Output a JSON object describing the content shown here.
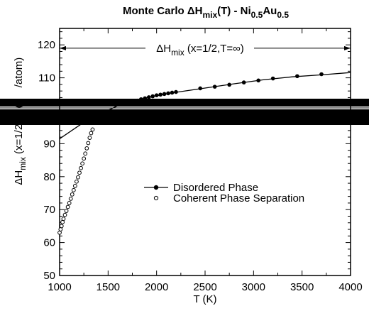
{
  "chart_data": {
    "type": "scatter",
    "title": {
      "main": "Monte Carlo ",
      "delta": "Δ",
      "H": "H",
      "mix_sub": "mix",
      "tail": "(T) - Ni",
      "sub1": "0.5",
      "mid": "Au",
      "sub2": "0.5"
    },
    "xlabel": "T  (K)",
    "ylabel": {
      "delta": "Δ",
      "H": "H",
      "mix_sub": "mix",
      "rest_visible": " (x=1/2,T) (",
      "rest_top": "/atom)"
    },
    "xlim": [
      1000,
      4000
    ],
    "ylim": [
      50,
      125
    ],
    "x_ticks": [
      "1000",
      "1500",
      "2000",
      "2500",
      "3000",
      "3500",
      "4000"
    ],
    "y_ticks": [
      "50",
      "60",
      "70",
      "80",
      "90",
      "110",
      "120"
    ],
    "x_tick_values": [
      1000,
      1500,
      2000,
      2500,
      3000,
      3500,
      4000
    ],
    "y_tick_values": [
      50,
      60,
      70,
      80,
      90,
      110,
      120
    ],
    "obscured_band": {
      "y_from": 95,
      "y_to": 102
    },
    "annotation": {
      "value": 119,
      "prefix": "Δ",
      "H": "H",
      "sub": "mix",
      "text": " (x=1/2,T=∞)"
    },
    "legend": {
      "placement": "center-right",
      "entries": [
        "Disordered Phase",
        "Coherent Phase Separation"
      ]
    },
    "series": [
      {
        "name": "Disordered Phase",
        "style": "line-filled-markers",
        "curve": [
          {
            "x": 1000,
            "y": 91.5
          },
          {
            "x": 1300,
            "y": 97.5
          },
          {
            "x": 1600,
            "y": 101.5
          },
          {
            "x": 1900,
            "y": 104.0
          },
          {
            "x": 2200,
            "y": 105.6
          },
          {
            "x": 2500,
            "y": 106.9
          },
          {
            "x": 2800,
            "y": 108.2
          },
          {
            "x": 3100,
            "y": 109.4
          },
          {
            "x": 3400,
            "y": 110.3
          },
          {
            "x": 3700,
            "y": 110.9
          },
          {
            "x": 4000,
            "y": 111.6
          }
        ],
        "points": [
          {
            "x": 1720,
            "y": 102.4
          },
          {
            "x": 1760,
            "y": 102.7
          },
          {
            "x": 1800,
            "y": 103.1
          },
          {
            "x": 1840,
            "y": 103.5
          },
          {
            "x": 1880,
            "y": 103.8
          },
          {
            "x": 1920,
            "y": 104.1
          },
          {
            "x": 1960,
            "y": 104.4
          },
          {
            "x": 2000,
            "y": 104.7
          },
          {
            "x": 2040,
            "y": 104.9
          },
          {
            "x": 2080,
            "y": 105.1
          },
          {
            "x": 2120,
            "y": 105.3
          },
          {
            "x": 2160,
            "y": 105.5
          },
          {
            "x": 2200,
            "y": 105.7
          },
          {
            "x": 2450,
            "y": 106.8
          },
          {
            "x": 2600,
            "y": 107.3
          },
          {
            "x": 2750,
            "y": 107.9
          },
          {
            "x": 2900,
            "y": 108.6
          },
          {
            "x": 3050,
            "y": 109.2
          },
          {
            "x": 3200,
            "y": 109.8
          },
          {
            "x": 3450,
            "y": 110.5
          },
          {
            "x": 3700,
            "y": 111.1
          }
        ]
      },
      {
        "name": "Coherent Phase Separation",
        "style": "open-markers",
        "points": [
          {
            "x": 1000,
            "y": 63.0
          },
          {
            "x": 1010,
            "y": 64.0
          },
          {
            "x": 1020,
            "y": 65.0
          },
          {
            "x": 1030,
            "y": 66.2
          },
          {
            "x": 1040,
            "y": 67.2
          },
          {
            "x": 1055,
            "y": 68.4
          },
          {
            "x": 1070,
            "y": 69.6
          },
          {
            "x": 1085,
            "y": 70.8
          },
          {
            "x": 1100,
            "y": 72.0
          },
          {
            "x": 1115,
            "y": 73.3
          },
          {
            "x": 1130,
            "y": 74.6
          },
          {
            "x": 1145,
            "y": 75.9
          },
          {
            "x": 1160,
            "y": 77.2
          },
          {
            "x": 1175,
            "y": 78.5
          },
          {
            "x": 1190,
            "y": 79.8
          },
          {
            "x": 1205,
            "y": 81.2
          },
          {
            "x": 1220,
            "y": 82.6
          },
          {
            "x": 1235,
            "y": 84.0
          },
          {
            "x": 1250,
            "y": 85.5
          },
          {
            "x": 1265,
            "y": 87.0
          },
          {
            "x": 1280,
            "y": 88.6
          },
          {
            "x": 1295,
            "y": 90.2
          },
          {
            "x": 1310,
            "y": 91.8
          },
          {
            "x": 1325,
            "y": 93.2
          },
          {
            "x": 1340,
            "y": 94.3
          }
        ]
      }
    ]
  }
}
